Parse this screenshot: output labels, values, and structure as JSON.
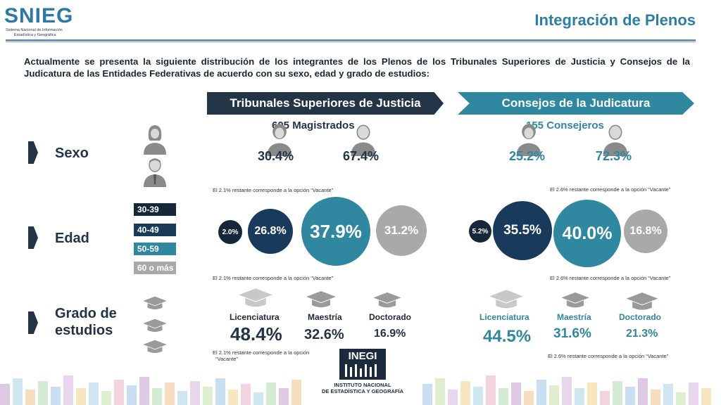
{
  "header": {
    "logo_text": "SNIEG",
    "logo_sub_1": "Sistema Nacional de Información",
    "logo_sub_2": "Estadística y Geográfica",
    "title": "Integración de Plenos"
  },
  "intro": "Actualmente se presenta la siguiente distribución de los integrantes de los Plenos de los Tribunales Superiores de Justicia y Consejos de la Judicatura de las Entidades Federativas de acuerdo con su sexo, edad y grado de estudios:",
  "rows": {
    "sexo": "Sexo",
    "edad": "Edad",
    "grado_1": "Grado de",
    "grado_2": "estudios"
  },
  "tsj": {
    "banner": "Tribunales Superiores de Justicia",
    "count": "605 Magistrados",
    "sexo": {
      "female": "30.4%",
      "male": "67.4%",
      "note": "El 2.1% restante corresponde a la opción “Vacante”"
    },
    "edad": {
      "g1": "2.0%",
      "g2": "26.8%",
      "g3": "37.9%",
      "g4": "31.2%",
      "note": "El 2.1% restante corresponde a la opción “Vacante”"
    },
    "estudios": {
      "lic_label": "Licenciatura",
      "lic": "48.4%",
      "mae_label": "Maestría",
      "mae": "32.6%",
      "doc_label": "Doctorado",
      "doc": "16.9%",
      "note_1": "El 2.1% restante corresponde a la opción",
      "note_2": "“Vacante”"
    }
  },
  "cj": {
    "banner": "Consejos de la Judicatura",
    "count": "155 Consejeros",
    "sexo": {
      "female": "25.2%",
      "male": "72.3%",
      "note": "El 2.6% restante corresponde a la opción “Vacante”"
    },
    "edad": {
      "g1": "5.2%",
      "g2": "35.5%",
      "g3": "40.0%",
      "g4": "16.8%",
      "note": "El 2.6% restante corresponde a la opción “Vacante”"
    },
    "estudios": {
      "lic_label": "Licenciatura",
      "lic": "44.5%",
      "mae_label": "Maestría",
      "mae": "31.6%",
      "doc_label": "Doctorado",
      "doc": "21.3%",
      "note": "El 2.6% restante corresponde a la opción “Vacante”"
    }
  },
  "age_legend": [
    "30-39",
    "40-49",
    "50-59",
    "60 o más"
  ],
  "inegi": {
    "name": "INEGI",
    "line1": "INSTITUTO NACIONAL",
    "line2": "DE ESTADÍSTICA Y GEOGRAFÍA"
  },
  "colors": {
    "dark": "#243447",
    "navy": "#1a3a5c",
    "teal": "#2f87a0",
    "gray": "#a9a9a9",
    "title_blue": "#2d7ea6"
  },
  "icons": [
    "female-person-icon",
    "male-person-icon",
    "graduation-cap-icon"
  ]
}
